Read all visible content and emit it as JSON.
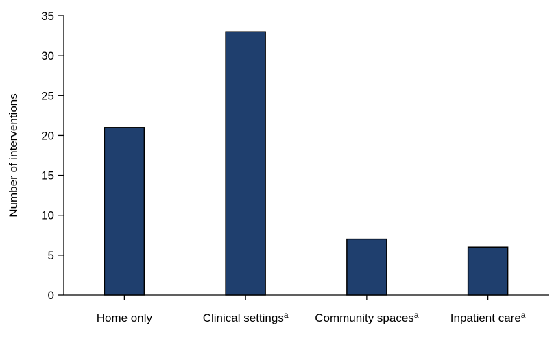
{
  "chart_data": {
    "type": "bar",
    "categories": [
      {
        "label": "Home only",
        "superscript": ""
      },
      {
        "label": "Clinical settings",
        "superscript": "a"
      },
      {
        "label": "Community spaces",
        "superscript": "a"
      },
      {
        "label": "Inpatient care",
        "superscript": "a"
      }
    ],
    "values": [
      21,
      33,
      7,
      6
    ],
    "ylabel": "Number of interventions",
    "xlabel": "",
    "ylim": [
      0,
      35
    ],
    "yticks": [
      "0",
      "5",
      "10",
      "15",
      "20",
      "25",
      "30",
      "35"
    ],
    "grid": false,
    "colors": {
      "bar_fill": "#1f3f6e",
      "bar_stroke": "#000000",
      "axis": "#000000"
    }
  }
}
